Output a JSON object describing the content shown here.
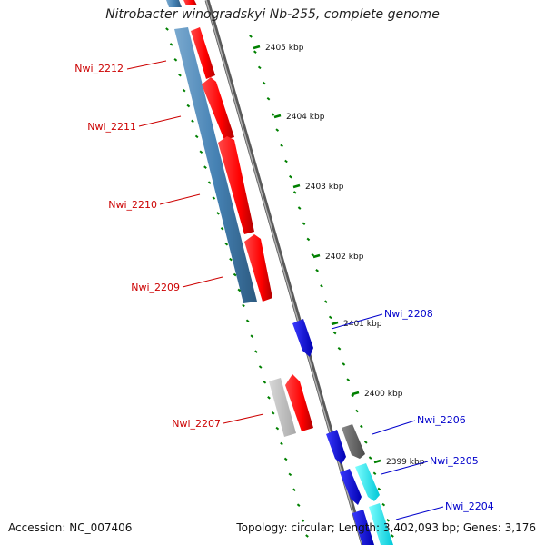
{
  "title": "Nitrobacter winogradskyi Nb-255, complete genome",
  "footer": {
    "accession": "Accession: NC_007406",
    "summary": "Topology: circular; Length: 3,402,093 bp; Genes: 3,176"
  },
  "colors": {
    "forward_feature": "#ff0000",
    "forward_cds": "#4682b4",
    "reverse_feature": "#0000ff",
    "reverse_alt": "#00ffff",
    "grey_feature": "#808080",
    "backbone": "#808080",
    "tick_marks": "#008000",
    "label_forward": "#cc0000",
    "label_reverse": "#0000cc"
  },
  "ticks": [
    {
      "label": "2405 kbp"
    },
    {
      "label": "2404 kbp"
    },
    {
      "label": "2403 kbp"
    },
    {
      "label": "2402 kbp"
    },
    {
      "label": "2401 kbp"
    },
    {
      "label": "2400 kbp"
    },
    {
      "label": "2399 kbp"
    }
  ],
  "gene_labels": [
    {
      "name": "Nwi_2212",
      "strand": "forward"
    },
    {
      "name": "Nwi_2211",
      "strand": "forward"
    },
    {
      "name": "Nwi_2210",
      "strand": "forward"
    },
    {
      "name": "Nwi_2209",
      "strand": "forward"
    },
    {
      "name": "Nwi_2207",
      "strand": "forward"
    },
    {
      "name": "Nwi_2208",
      "strand": "reverse"
    },
    {
      "name": "Nwi_2206",
      "strand": "reverse"
    },
    {
      "name": "Nwi_2205",
      "strand": "reverse"
    },
    {
      "name": "Nwi_2204",
      "strand": "reverse"
    }
  ]
}
